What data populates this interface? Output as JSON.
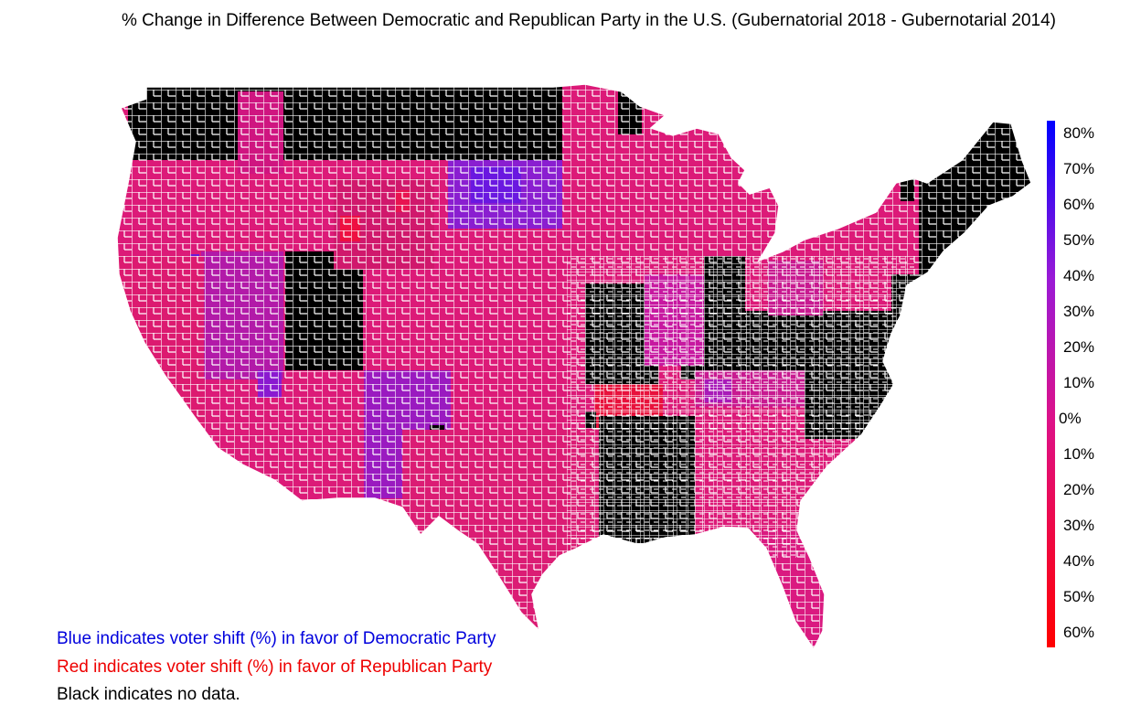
{
  "title": "% Change in Difference Between Democratic and Republican Party in the U.S. (Gubernatorial 2018 - Gubernotarial 2014)",
  "legend": {
    "tick_labels": [
      "80%",
      "70%",
      "60%",
      "50%",
      "40%",
      "30%",
      "20%",
      "10%",
      "0%",
      "10%",
      "20%",
      "30%",
      "40%",
      "50%",
      "60%"
    ],
    "top_color": "#0000ff",
    "mid_color": "#dd1188",
    "bottom_color": "#ff0000"
  },
  "notes": {
    "blue": "Blue indicates voter shift (%) in favor of Democratic Party",
    "red": "Red indicates voter shift (%) in favor of Republican Party",
    "black": "Black indicates no data."
  },
  "colors": {
    "blue": "#0000dd",
    "red": "#ee0000",
    "no_data": "#000000",
    "county_border": "#ffffff"
  }
}
